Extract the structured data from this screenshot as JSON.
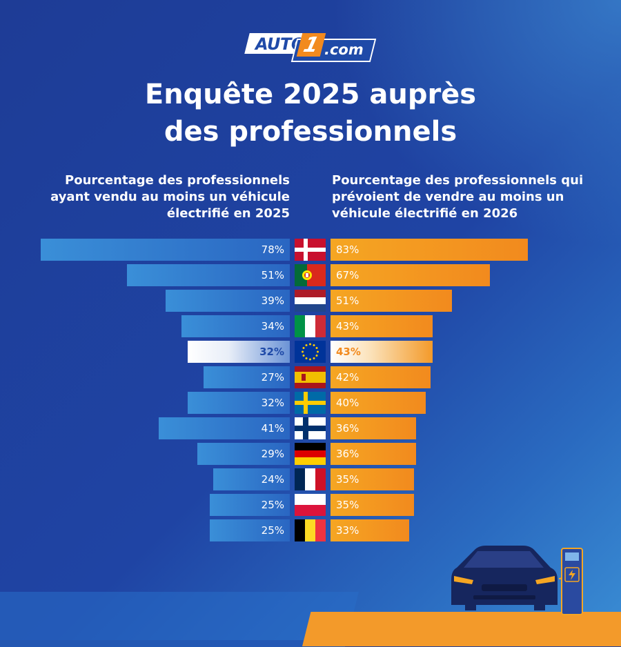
{
  "brand": {
    "logo_auto": "AUTO",
    "logo_one": "1",
    "logo_dotcom": ".com"
  },
  "title": {
    "line1": "Enquête 2025 auprès",
    "line2": "des professionnels"
  },
  "subtitles": {
    "left_part1": "Pourcentage des professionnels ayant vendu au moins un véhicule électrifié en ",
    "left_year": "2025",
    "right_part1": "Pourcentage des professionnels qui prévoient de vendre au moins un véhicule électrifié en ",
    "right_year": "2026"
  },
  "colors": {
    "background": "#1f44a4",
    "left_bar": "#3a8fd8",
    "right_bar": "#f5a623",
    "highlight_blue": "#1f4aa8",
    "highlight_orange": "#f28a1e"
  },
  "chart_data": {
    "type": "bar",
    "orientation": "horizontal-butterfly",
    "categories": [
      "Danemark",
      "Portugal",
      "Pays-Bas",
      "Italie",
      "Union européenne",
      "Espagne",
      "Suède",
      "Finlande",
      "Allemagne",
      "France",
      "Pologne",
      "Belgique"
    ],
    "category_icons": [
      "flag-denmark",
      "flag-portugal",
      "flag-netherlands",
      "flag-italy",
      "flag-eu",
      "flag-spain",
      "flag-sweden",
      "flag-finland",
      "flag-germany",
      "flag-france",
      "flag-poland",
      "flag-belgium"
    ],
    "series": [
      {
        "year": "2025",
        "values": [
          78,
          51,
          39,
          34,
          32,
          27,
          32,
          41,
          29,
          24,
          25,
          25
        ],
        "labels": [
          "78%",
          "51%",
          "39%",
          "34%",
          "32%",
          "27%",
          "32%",
          "41%",
          "29%",
          "24%",
          "25%",
          "25%"
        ]
      },
      {
        "year": "2026",
        "values": [
          83,
          67,
          51,
          43,
          43,
          42,
          40,
          36,
          36,
          35,
          35,
          33
        ],
        "labels": [
          "83%",
          "67%",
          "51%",
          "43%",
          "43%",
          "42%",
          "40%",
          "36%",
          "36%",
          "35%",
          "35%",
          "33%"
        ]
      }
    ],
    "highlight_index": 4,
    "unit": "%"
  }
}
